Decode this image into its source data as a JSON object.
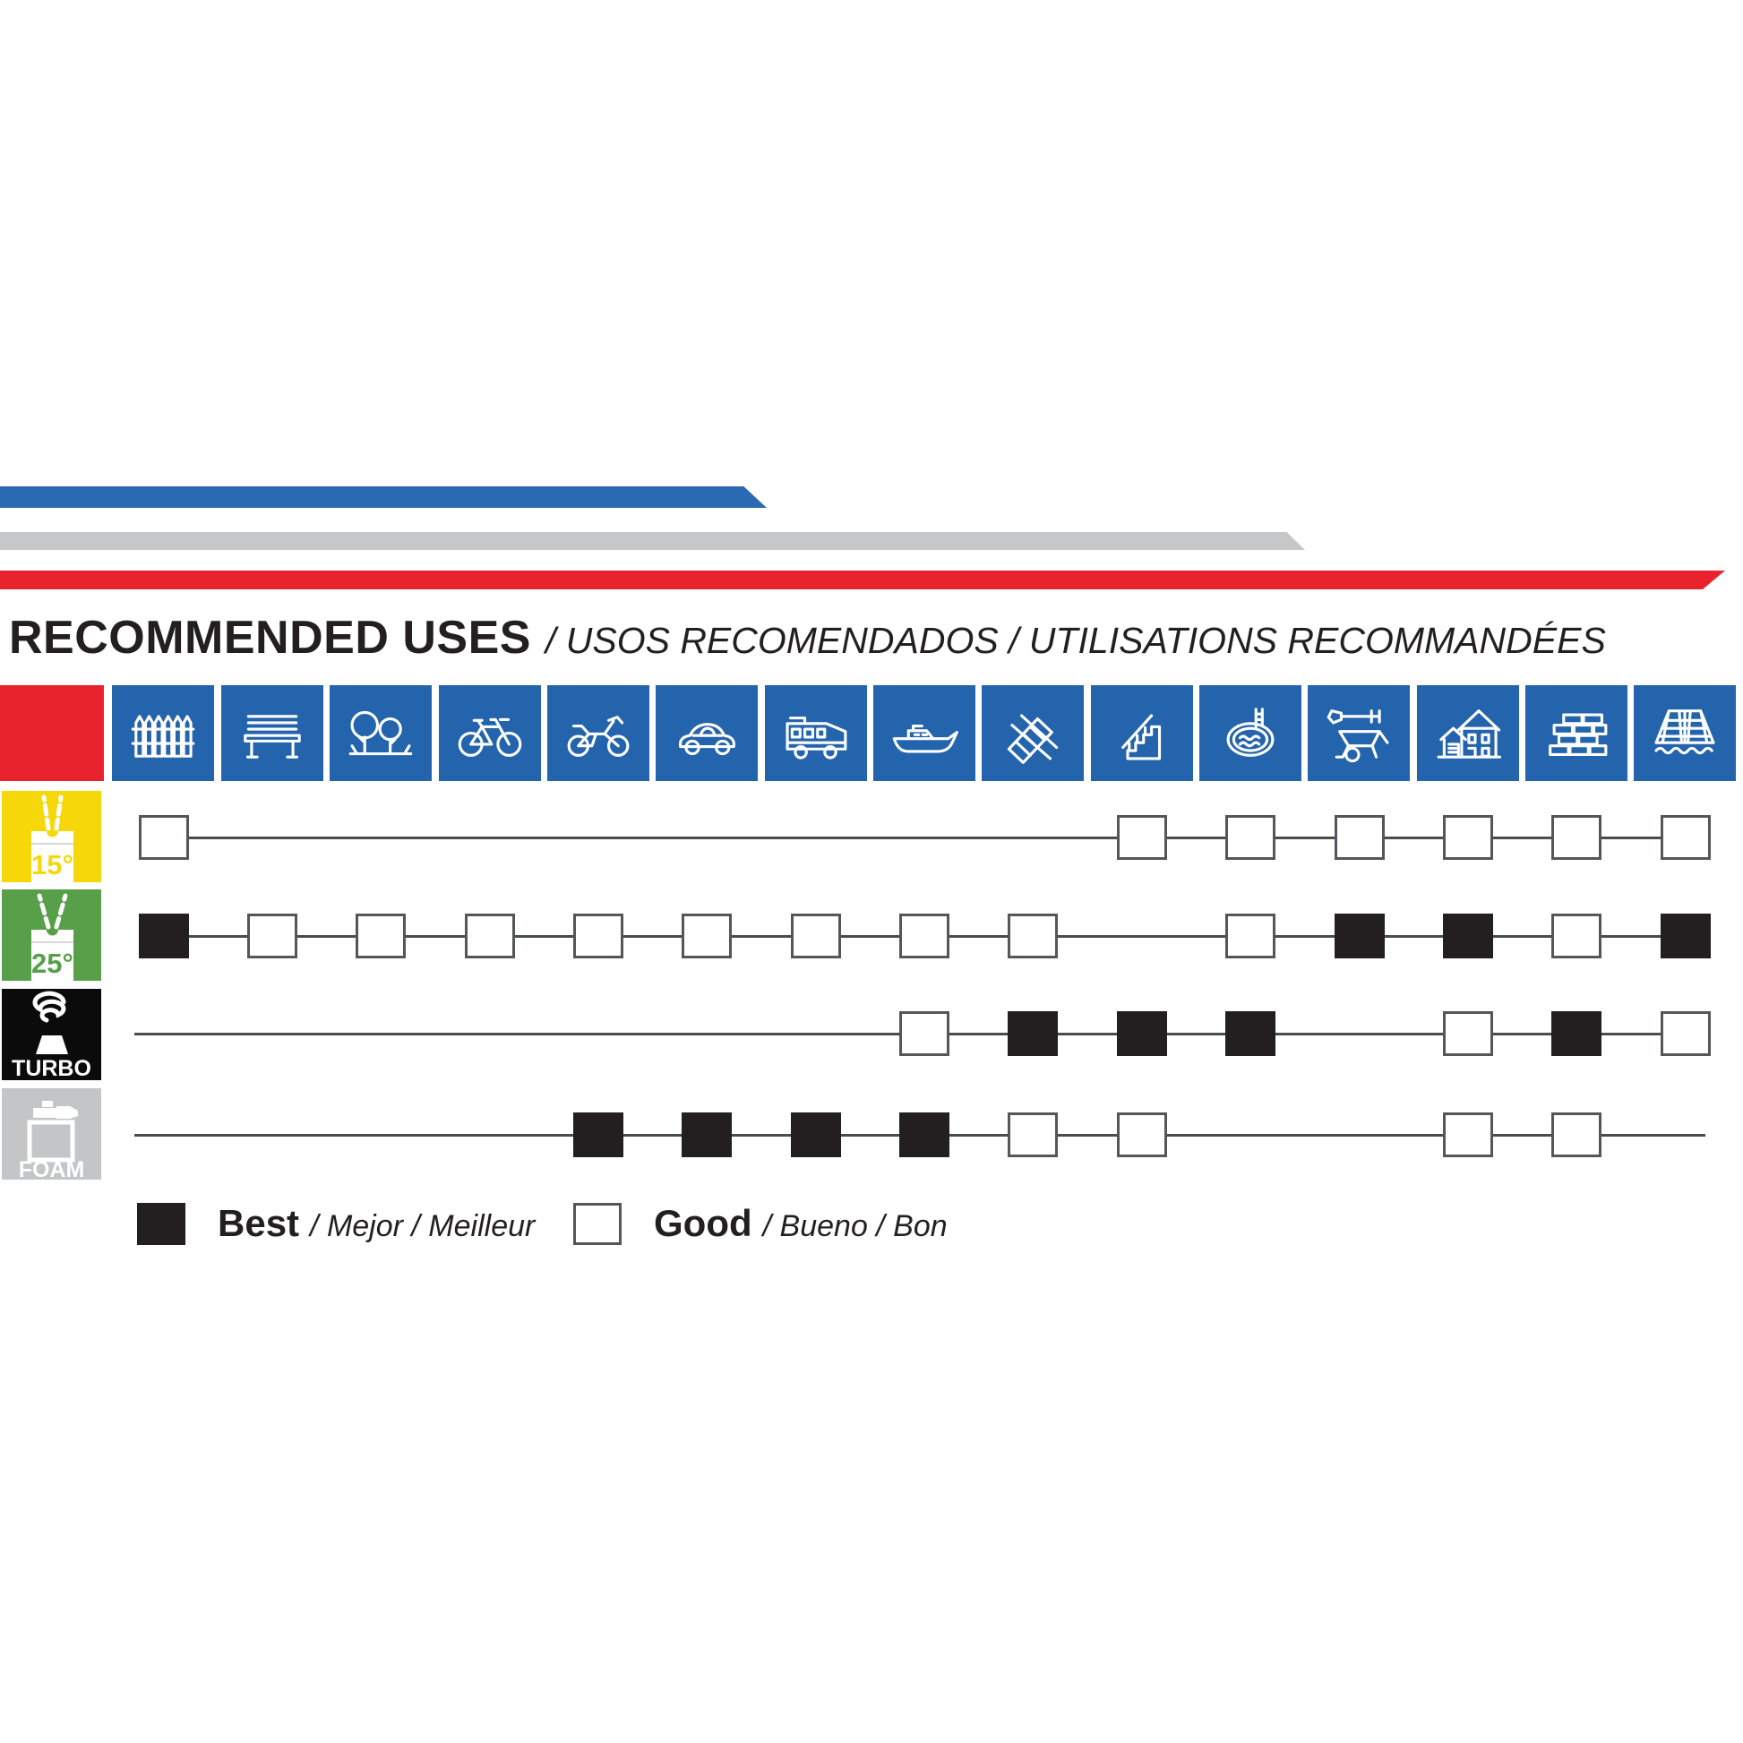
{
  "title": {
    "main": "RECOMMENDED USES",
    "sub": "/ USOS RECOMENDADOS / UTILISATIONS RECOMMANDÉES"
  },
  "legend": {
    "best_label": "Best",
    "best_sub": "/ Mejor / Meilleur",
    "good_label": "Good",
    "good_sub": "/ Bueno / Bon"
  },
  "colors": {
    "stripe_blue": "#2a6ab3",
    "stripe_gray": "#c6c7c8",
    "stripe_red": "#e8232d",
    "tile_blue": "#2464ad",
    "yellow": "#f6d70a",
    "green": "#579f49",
    "turbo_black": "#0b0b0b",
    "foam_gray": "#c4c5c7",
    "ink": "#231f20",
    "line_gray": "#4a4b4d",
    "square_border": "#55565a"
  },
  "chart_data": {
    "type": "table",
    "title": "RECOMMENDED USES / USOS RECOMENDADOS / UTILISATIONS RECOMMANDÉES",
    "columns": [
      "fence",
      "bench",
      "trees",
      "bicycle",
      "motorcycle",
      "car",
      "rv-camper",
      "boat",
      "deck",
      "stairs",
      "pool",
      "wheelbarrow",
      "house",
      "brick-wall",
      "roof-tiles"
    ],
    "rows": [
      {
        "nozzle": "15°",
        "color": "#f6d70a",
        "ratings": {
          "fence": "good",
          "stairs": "good",
          "pool": "good",
          "wheelbarrow": "good",
          "house": "good",
          "brick-wall": "good",
          "roof-tiles": "good"
        }
      },
      {
        "nozzle": "25°",
        "color": "#579f49",
        "ratings": {
          "fence": "best",
          "bench": "good",
          "trees": "good",
          "bicycle": "good",
          "motorcycle": "good",
          "car": "good",
          "rv-camper": "good",
          "boat": "good",
          "deck": "good",
          "pool": "good",
          "wheelbarrow": "best",
          "house": "best",
          "brick-wall": "good",
          "roof-tiles": "best"
        }
      },
      {
        "nozzle": "TURBO",
        "color": "#0b0b0b",
        "ratings": {
          "boat": "good",
          "deck": "best",
          "stairs": "best",
          "pool": "best",
          "house": "good",
          "brick-wall": "best",
          "roof-tiles": "good"
        }
      },
      {
        "nozzle": "FOAM",
        "color": "#c4c5c7",
        "ratings": {
          "motorcycle": "best",
          "car": "best",
          "rv-camper": "best",
          "boat": "best",
          "deck": "good",
          "stairs": "good",
          "house": "good",
          "brick-wall": "good"
        }
      }
    ],
    "legend": [
      "Best / Mejor / Meilleur",
      "Good / Bueno / Bon"
    ]
  }
}
